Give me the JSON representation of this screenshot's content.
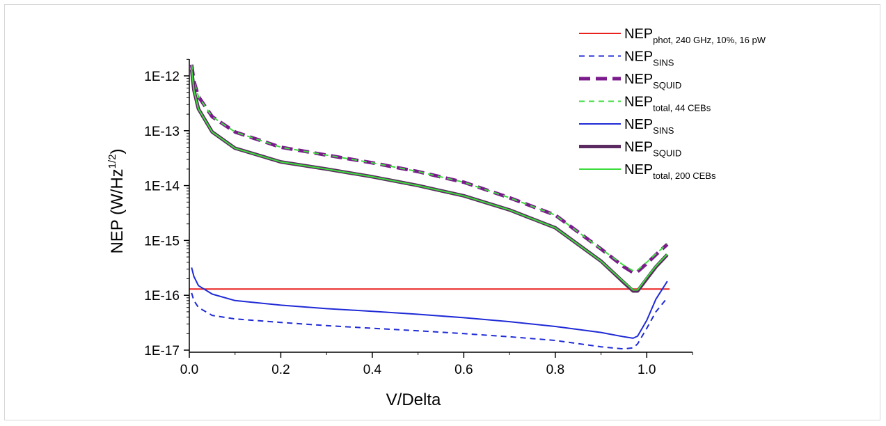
{
  "chart_data": {
    "type": "line",
    "xlabel": "V/Delta",
    "ylabel_main": "NEP (W/Hz",
    "ylabel_sup": "1/2",
    "ylabel_end": ")",
    "xlim": [
      0,
      1.1
    ],
    "ylim": [
      1e-17,
      2e-12
    ],
    "yscale": "log",
    "grid": false,
    "legend_position": "top-right",
    "x_ticks": [
      {
        "value": 0.0,
        "label": "0.0"
      },
      {
        "value": 0.2,
        "label": "0.2"
      },
      {
        "value": 0.4,
        "label": "0.4"
      },
      {
        "value": 0.6,
        "label": "0.6"
      },
      {
        "value": 0.8,
        "label": "0.8"
      },
      {
        "value": 1.0,
        "label": "1.0"
      }
    ],
    "y_ticks": [
      {
        "value": 1e-17,
        "label": "1E-17"
      },
      {
        "value": 1e-16,
        "label": "1E-16"
      },
      {
        "value": 1e-15,
        "label": "1E-15"
      },
      {
        "value": 1e-14,
        "label": "1E-14"
      },
      {
        "value": 1e-13,
        "label": "1E-13"
      },
      {
        "value": 1e-12,
        "label": "1E-12"
      }
    ],
    "series": [
      {
        "name": "NEP",
        "sub": "phot, 240 GHz, 10%, 16 pW",
        "color": "#e8201e",
        "style": "solid",
        "width": 2,
        "x": [
          0.0,
          1.05
        ],
        "y": [
          1.3e-16,
          1.3e-16
        ]
      },
      {
        "name": "NEP",
        "sub": "SINS",
        "color": "#1f2ad6",
        "style": "dashed",
        "width": 2,
        "x": [
          0.005,
          0.01,
          0.02,
          0.05,
          0.1,
          0.2,
          0.3,
          0.4,
          0.5,
          0.6,
          0.7,
          0.8,
          0.9,
          0.95,
          0.97,
          0.98,
          1.0,
          1.02,
          1.045
        ],
        "y": [
          1.1e-16,
          8e-17,
          6e-17,
          4.3e-17,
          3.7e-17,
          3.2e-17,
          2.8e-17,
          2.5e-17,
          2.25e-17,
          2e-17,
          1.75e-17,
          1.5e-17,
          1.15e-17,
          1.05e-17,
          1.1e-17,
          1.3e-17,
          2.5e-17,
          5e-17,
          9e-17
        ]
      },
      {
        "name": "NEP",
        "sub": "SQUID",
        "color": "#7b1a8c",
        "style": "dashed",
        "width": 5,
        "x": [
          0.005,
          0.01,
          0.02,
          0.05,
          0.1,
          0.2,
          0.3,
          0.4,
          0.5,
          0.6,
          0.7,
          0.8,
          0.9,
          0.95,
          0.97,
          0.98,
          1.0,
          1.02,
          1.045
        ],
        "y": [
          1.6e-12,
          8e-13,
          4.2e-13,
          1.8e-13,
          9.5e-14,
          5e-14,
          3.6e-14,
          2.6e-14,
          1.8e-14,
          1.15e-14,
          6e-15,
          2.9e-15,
          7e-16,
          3.3e-16,
          2.6e-16,
          2.7e-16,
          3.8e-16,
          5.5e-16,
          8.5e-16
        ]
      },
      {
        "name": "NEP",
        "sub": "total, 44 CEBs",
        "color": "#3cdc3c",
        "style": "dashed",
        "width": 2,
        "x": [
          0.005,
          0.01,
          0.02,
          0.05,
          0.1,
          0.2,
          0.3,
          0.4,
          0.5,
          0.6,
          0.7,
          0.8,
          0.9,
          0.95,
          0.97,
          0.98,
          1.0,
          1.02,
          1.045
        ],
        "y": [
          1.6e-12,
          8e-13,
          4.2e-13,
          1.8e-13,
          9.5e-14,
          5e-14,
          3.6e-14,
          2.6e-14,
          1.8e-14,
          1.15e-14,
          6e-15,
          2.9e-15,
          7e-16,
          3.5e-16,
          2.8e-16,
          2.9e-16,
          4e-16,
          5.7e-16,
          8.7e-16
        ]
      },
      {
        "name": "NEP",
        "sub": "SINS",
        "color": "#1f2ad6",
        "style": "solid",
        "width": 2,
        "x": [
          0.005,
          0.01,
          0.02,
          0.05,
          0.1,
          0.2,
          0.3,
          0.4,
          0.5,
          0.6,
          0.7,
          0.8,
          0.9,
          0.95,
          0.97,
          0.98,
          1.0,
          1.02,
          1.045
        ],
        "y": [
          3.2e-16,
          2.2e-16,
          1.5e-16,
          1.05e-16,
          8e-17,
          6.6e-17,
          5.7e-17,
          5.1e-17,
          4.5e-17,
          3.9e-17,
          3.3e-17,
          2.7e-17,
          2.1e-17,
          1.75e-17,
          1.65e-17,
          1.8e-17,
          3.5e-17,
          8.5e-17,
          1.8e-16
        ]
      },
      {
        "name": "NEP",
        "sub": "SQUID",
        "color": "#5b2a60",
        "style": "solid",
        "width": 5,
        "x": [
          0.005,
          0.01,
          0.02,
          0.05,
          0.1,
          0.2,
          0.3,
          0.4,
          0.5,
          0.6,
          0.7,
          0.8,
          0.9,
          0.95,
          0.97,
          0.98,
          1.0,
          1.02,
          1.045
        ],
        "y": [
          1.3e-12,
          5.5e-13,
          2.5e-13,
          9.5e-14,
          4.8e-14,
          2.7e-14,
          2e-14,
          1.45e-14,
          1e-14,
          6.5e-15,
          3.6e-15,
          1.7e-15,
          4.2e-16,
          1.7e-16,
          1.2e-16,
          1.2e-16,
          2e-16,
          3.3e-16,
          5.5e-16
        ]
      },
      {
        "name": "NEP",
        "sub": "total, 200 CEBs",
        "color": "#3cdc3c",
        "style": "solid",
        "width": 2,
        "x": [
          0.005,
          0.01,
          0.02,
          0.05,
          0.1,
          0.2,
          0.3,
          0.4,
          0.5,
          0.6,
          0.7,
          0.8,
          0.9,
          0.95,
          0.97,
          0.98,
          1.0,
          1.02,
          1.045
        ],
        "y": [
          1.3e-12,
          5.5e-13,
          2.5e-13,
          9.5e-14,
          4.8e-14,
          2.7e-14,
          2e-14,
          1.45e-14,
          1e-14,
          6.5e-15,
          3.6e-15,
          1.7e-15,
          4.2e-16,
          1.75e-16,
          1.25e-16,
          1.25e-16,
          2.1e-16,
          3.4e-16,
          5.6e-16
        ]
      }
    ]
  }
}
